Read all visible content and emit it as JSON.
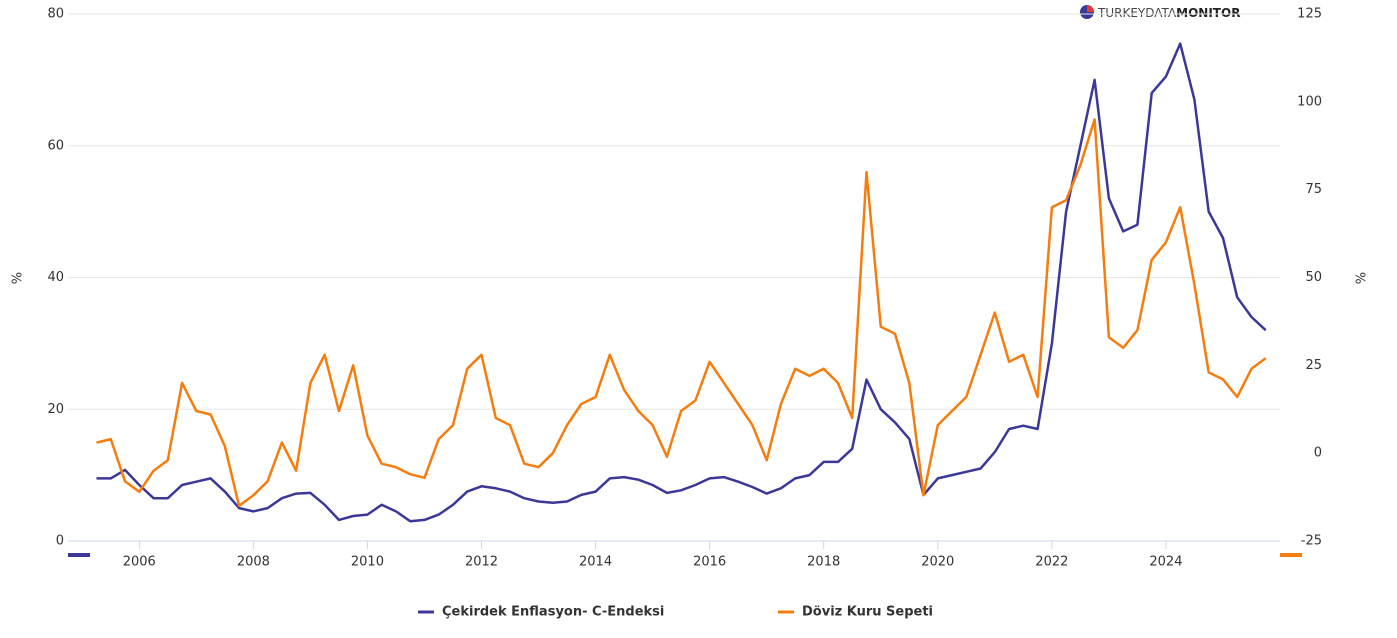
{
  "chart_data": {
    "type": "line",
    "y_label": "%",
    "y2_label": "%",
    "logo_text": [
      "TURKEYDATA",
      "MONITOR"
    ],
    "x": [
      2005.25,
      2005.5,
      2005.75,
      2006,
      2006.25,
      2006.5,
      2006.75,
      2007,
      2007.25,
      2007.5,
      2007.75,
      2008,
      2008.25,
      2008.5,
      2008.75,
      2009,
      2009.25,
      2009.5,
      2009.75,
      2010,
      2010.25,
      2010.5,
      2010.75,
      2011,
      2011.25,
      2011.5,
      2011.75,
      2012,
      2012.25,
      2012.5,
      2012.75,
      2013,
      2013.25,
      2013.5,
      2013.75,
      2014,
      2014.25,
      2014.5,
      2014.75,
      2015,
      2015.25,
      2015.5,
      2015.75,
      2016,
      2016.25,
      2016.5,
      2016.75,
      2017,
      2017.25,
      2017.5,
      2017.75,
      2018,
      2018.25,
      2018.5,
      2018.75,
      2019,
      2019.25,
      2019.5,
      2019.75,
      2020,
      2020.25,
      2020.5,
      2020.75,
      2021,
      2021.25,
      2021.5,
      2021.75,
      2022,
      2022.25,
      2022.5,
      2022.75,
      2023,
      2023.25,
      2023.5,
      2023.75,
      2024,
      2024.25,
      2024.5,
      2024.75,
      2025,
      2025.25,
      2025.5,
      2025.75
    ],
    "xlim": [
      2004.75,
      2026
    ],
    "xticks": [
      2006,
      2008,
      2010,
      2012,
      2014,
      2016,
      2018,
      2020,
      2022,
      2024
    ],
    "ylim": [
      0,
      80
    ],
    "yticks": [
      0,
      20,
      40,
      60,
      80
    ],
    "y2lim": [
      -25,
      125
    ],
    "y2ticks": [
      -25,
      0,
      25,
      50,
      75,
      100,
      125
    ],
    "grid": true,
    "legend": "bottom",
    "series": [
      {
        "name": "Çekirdek Enflasyon- C-Endeksi",
        "color": "#3b3896",
        "values": [
          9.5,
          9.5,
          10.8,
          8.5,
          6.5,
          6.5,
          8.5,
          9,
          9.5,
          7.5,
          5,
          4.5,
          5,
          6.5,
          7.2,
          7.3,
          5.5,
          3.2,
          3.8,
          4,
          5.5,
          4.5,
          3,
          3.2,
          4,
          5.5,
          7.5,
          8.3,
          8,
          7.5,
          6.5,
          6,
          5.8,
          6,
          7,
          7.5,
          9.5,
          9.7,
          9.3,
          8.5,
          7.3,
          7.7,
          8.5,
          9.5,
          9.7,
          9,
          8.2,
          7.2,
          8,
          9.5,
          10,
          12,
          12,
          14,
          24.5,
          20,
          18,
          15.5,
          7,
          9.5,
          10,
          10.5,
          11,
          13.5,
          17,
          17.5,
          17,
          30,
          50,
          60,
          70,
          52,
          47,
          48,
          68,
          70.5,
          75.5,
          67,
          50,
          46,
          37,
          34,
          32
        ]
      },
      {
        "name": "Döviz Kuru Sepeti",
        "color": "#f57c0e",
        "axis": "y2",
        "values": [
          3,
          4,
          -8,
          -11,
          -5,
          -2,
          20,
          12,
          11,
          2,
          -15,
          -12,
          -8,
          3,
          -5,
          20,
          28,
          12,
          25,
          5,
          -3,
          -4,
          -6,
          -7,
          4,
          8,
          24,
          28,
          10,
          8,
          -3,
          -4,
          0,
          8,
          14,
          16,
          28,
          18,
          12,
          8,
          -1,
          12,
          15,
          26,
          20,
          14,
          8,
          -2,
          14,
          24,
          22,
          24,
          20,
          10,
          80,
          36,
          34,
          20,
          -12,
          8,
          12,
          16,
          28,
          40,
          26,
          28,
          16,
          70,
          72,
          82,
          95,
          33,
          30,
          35,
          55,
          60,
          70,
          48,
          23,
          21,
          16,
          24,
          27
        ]
      }
    ]
  }
}
